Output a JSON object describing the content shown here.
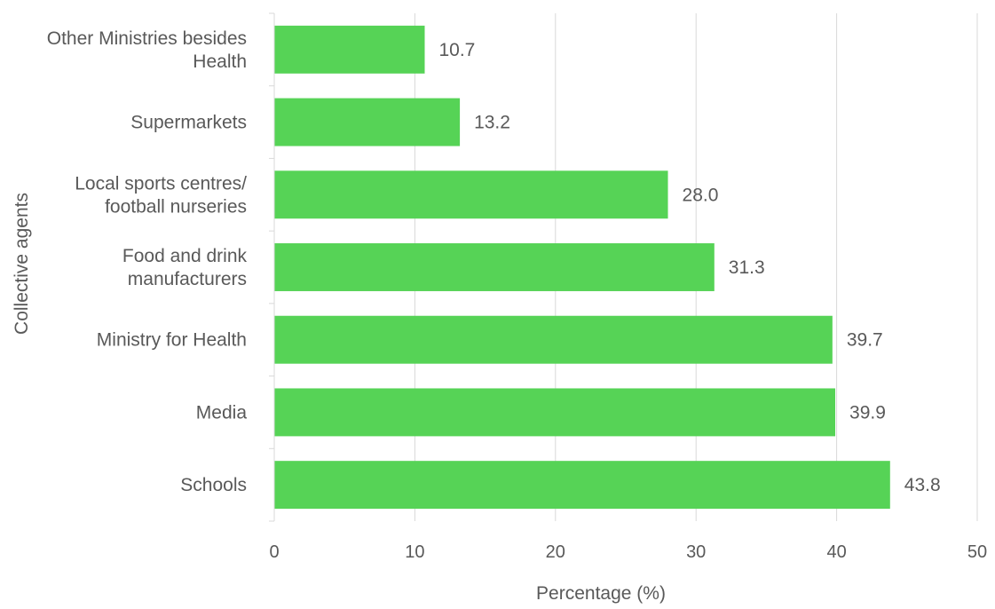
{
  "chart_data": {
    "type": "bar",
    "orientation": "horizontal",
    "categories": [
      "Other Ministries besides Health",
      "Supermarkets",
      "Local sports centres/ football nurseries",
      "Food and drink manufacturers",
      "Ministry for Health",
      "Media",
      "Schools"
    ],
    "category_lines": [
      [
        "Other Ministries besides",
        "Health"
      ],
      [
        "Supermarkets"
      ],
      [
        "Local sports centres/",
        "football nurseries"
      ],
      [
        "Food and drink",
        "manufacturers"
      ],
      [
        "Ministry for Health"
      ],
      [
        "Media"
      ],
      [
        "Schools"
      ]
    ],
    "values": [
      10.7,
      13.2,
      28.0,
      31.3,
      39.7,
      39.9,
      43.8
    ],
    "value_labels": [
      "10.7",
      "13.2",
      "28.0",
      "31.3",
      "39.7",
      "39.9",
      "43.8"
    ],
    "xlabel": "Percentage (%)",
    "ylabel": "Collective agents",
    "xlim": [
      0,
      50
    ],
    "xticks": [
      0,
      10,
      20,
      30,
      40,
      50
    ],
    "grid": "vertical",
    "legend": "none",
    "bar_color": "#56d356"
  }
}
